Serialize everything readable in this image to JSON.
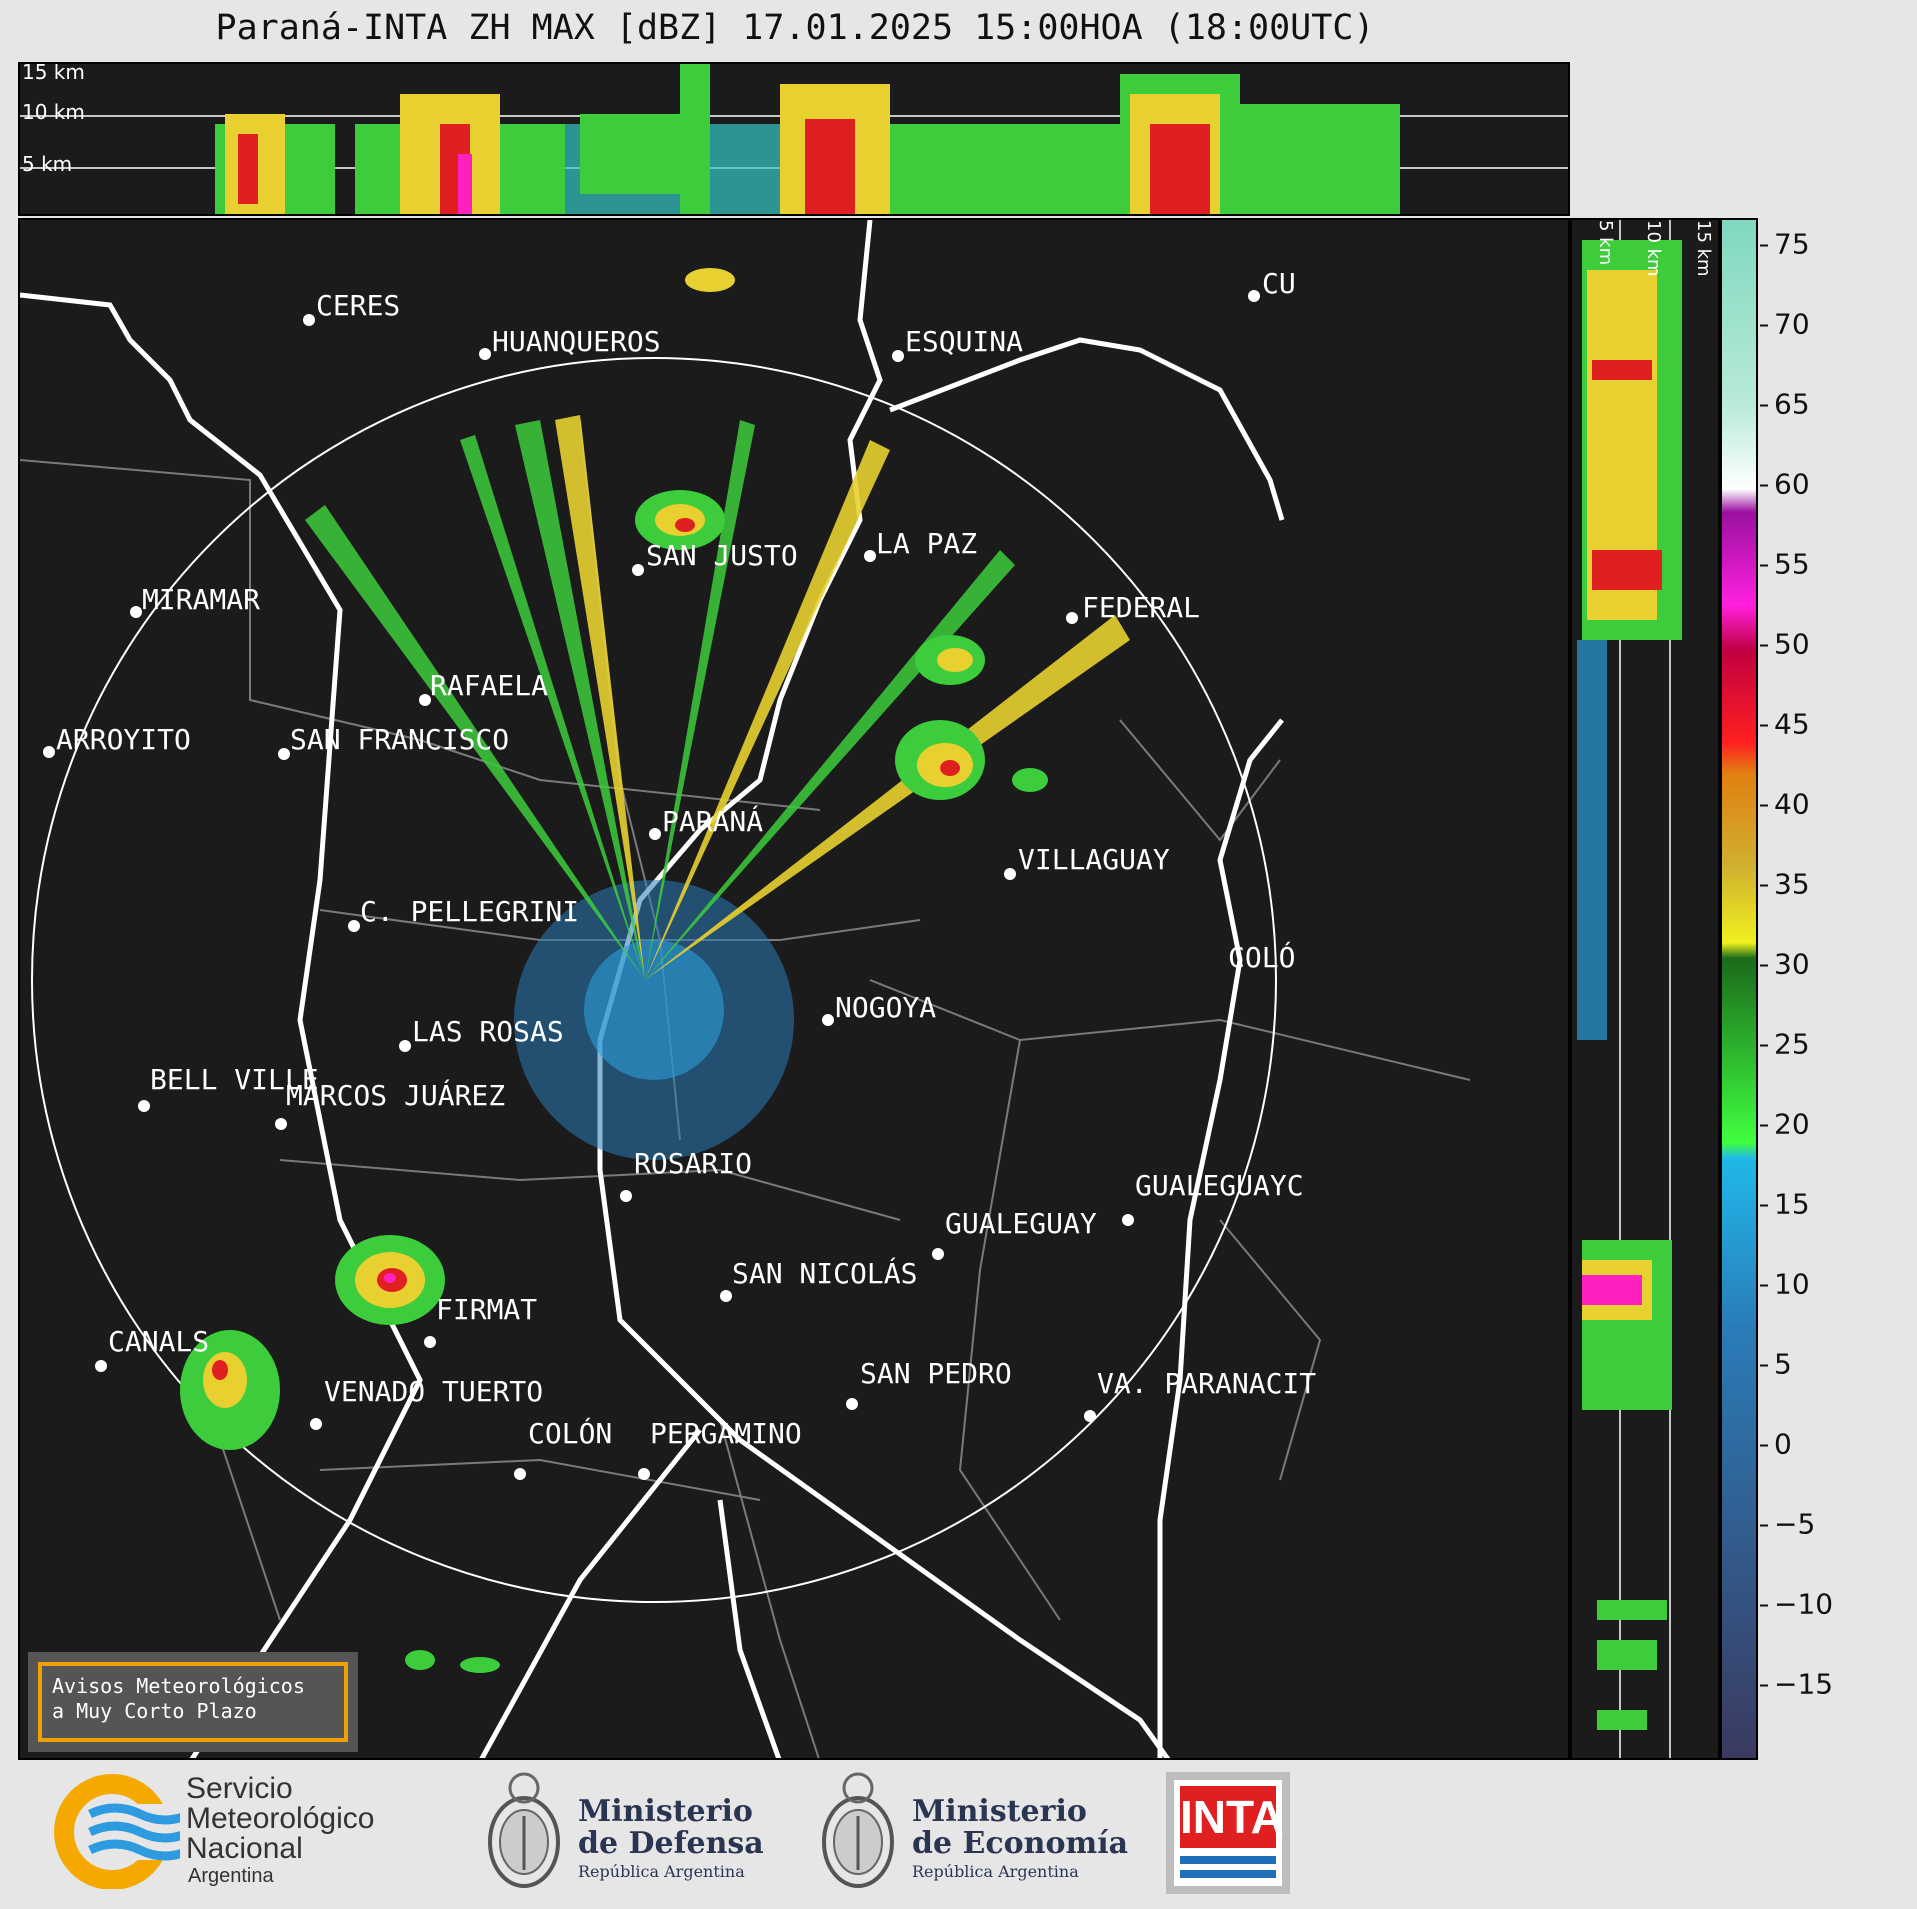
{
  "header": {
    "title": "Paraná-INTA ZH MAX [dBZ] 17.01.2025 15:00HOA (18:00UTC)"
  },
  "height_panel": {
    "labels": [
      "15 km",
      "10 km",
      "5 km"
    ]
  },
  "cities": [
    {
      "name": "CERES"
    },
    {
      "name": "HUANQUEROS"
    },
    {
      "name": "ESQUINA"
    },
    {
      "name": "CU"
    },
    {
      "name": "SAN JUSTO"
    },
    {
      "name": "LA PAZ"
    },
    {
      "name": "MIRAMAR"
    },
    {
      "name": "FEDERAL"
    },
    {
      "name": "RAFAELA"
    },
    {
      "name": "ARROYITO"
    },
    {
      "name": "SAN FRANCISCO"
    },
    {
      "name": "PARANÁ"
    },
    {
      "name": "VILLAGUAY"
    },
    {
      "name": "C. PELLEGRINI"
    },
    {
      "name": "COLÓ"
    },
    {
      "name": "NOGOYA"
    },
    {
      "name": "LAS ROSAS"
    },
    {
      "name": "BELL VILLE"
    },
    {
      "name": "MARCOS JUÁREZ"
    },
    {
      "name": "ROSARIO"
    },
    {
      "name": "GUALEGUAYC"
    },
    {
      "name": "GUALEGUAY"
    },
    {
      "name": "SAN NICOLÁS"
    },
    {
      "name": "FIRMAT"
    },
    {
      "name": "CANALS"
    },
    {
      "name": "SAN PEDRO"
    },
    {
      "name": "VENADO TUERTO"
    },
    {
      "name": "VA. PARANACIT"
    },
    {
      "name": "COLÓN"
    },
    {
      "name": "PERGAMINO"
    }
  ],
  "colorbar": {
    "ticks": [
      "75",
      "70",
      "65",
      "60",
      "55",
      "50",
      "45",
      "40",
      "35",
      "30",
      "25",
      "20",
      "15",
      "10",
      "5",
      "0",
      "−5",
      "−10",
      "−15"
    ]
  },
  "avisos": {
    "line1": "Avisos Meteorológicos",
    "line2": "a Muy Corto Plazo"
  },
  "footer": {
    "smn": [
      "Servicio",
      "Meteorológico",
      "Nacional",
      "Argentina"
    ],
    "defensa": [
      "Ministerio",
      "de Defensa",
      "República Argentina"
    ],
    "economia": [
      "Ministerio",
      "de Economía",
      "República Argentina"
    ],
    "inta": "INTA"
  },
  "colors": {
    "background": "#1b1b1b",
    "accent_box": "#f0a000",
    "inta_red": "#e02020",
    "inta_blue": "#1e6fb8",
    "smn_orange": "#f5a800",
    "smn_blue": "#2e9be0"
  }
}
